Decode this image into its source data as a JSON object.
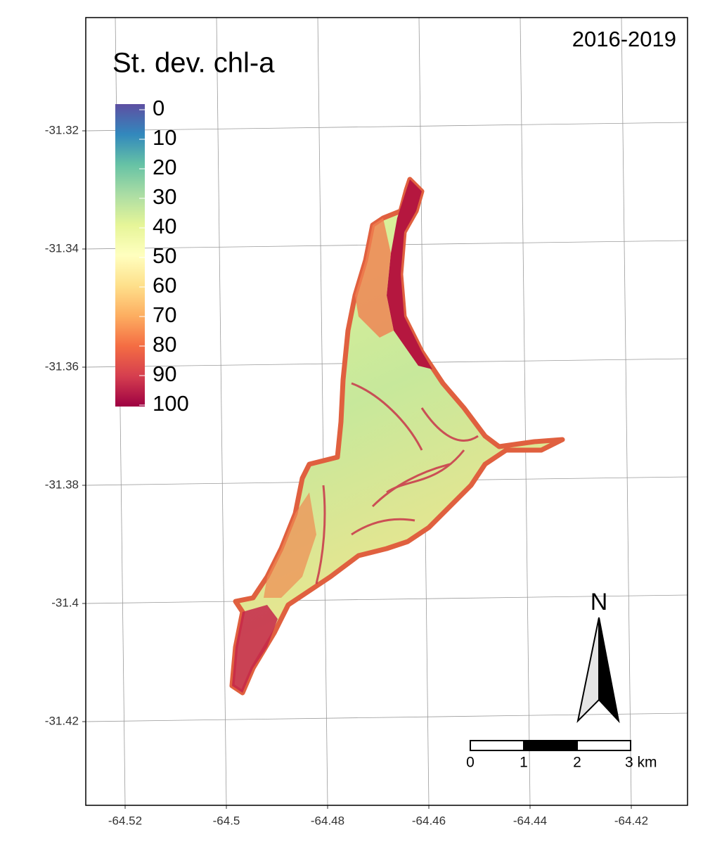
{
  "map": {
    "title": "St. dev. chl-a",
    "period": "2016-2019",
    "legend": {
      "ticks": [
        0,
        10,
        20,
        30,
        40,
        50,
        60,
        70,
        80,
        90,
        100
      ],
      "colors": [
        "#5e4fa2",
        "#3288bd",
        "#66c2a5",
        "#abdda4",
        "#e6f598",
        "#ffffbf",
        "#fee08b",
        "#fdae61",
        "#f46d43",
        "#d53e4f",
        "#9e0142"
      ]
    },
    "x_axis": {
      "ticks": [
        -64.52,
        -64.5,
        -64.48,
        -64.46,
        -64.44,
        -64.42
      ]
    },
    "y_axis": {
      "ticks": [
        -31.32,
        -31.34,
        -31.36,
        -31.38,
        -31.4,
        -31.42
      ]
    },
    "north_arrow": {
      "label": "N"
    },
    "scale_bar": {
      "ticks": [
        0,
        1,
        2,
        {
          "value": 3,
          "label": "3 km"
        }
      ]
    }
  }
}
